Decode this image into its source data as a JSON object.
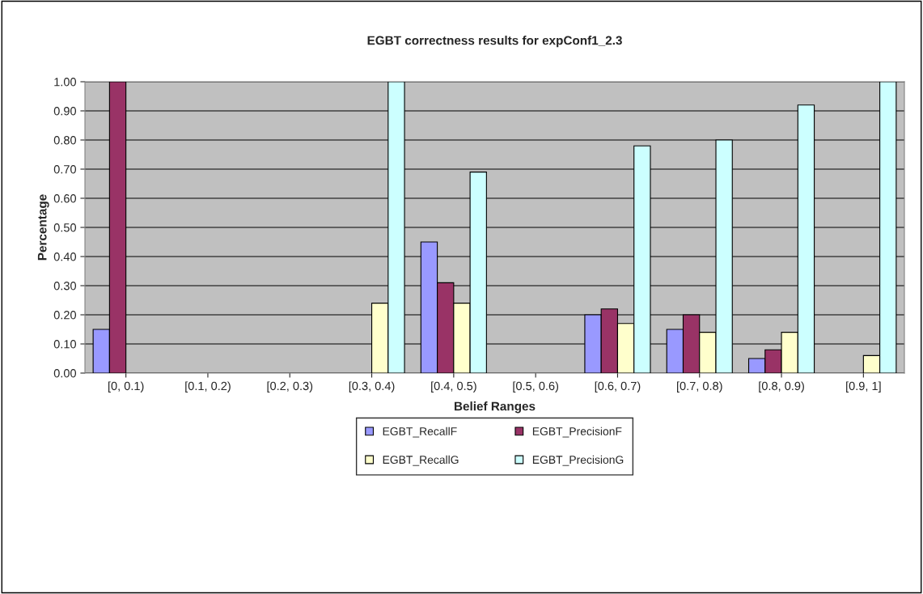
{
  "chart_data": {
    "type": "bar",
    "title": "EGBT correctness results for expConf1_2.3",
    "xlabel": "Belief Ranges",
    "ylabel": "Percentage",
    "categories": [
      "[0, 0.1)",
      "[0.1, 0.2)",
      "[0.2, 0.3)",
      "[0.3, 0.4)",
      "[0.4, 0.5)",
      "[0.5, 0.6)",
      "[0.6, 0.7)",
      "[0.7, 0.8)",
      "[0.8, 0.9)",
      "[0.9, 1]"
    ],
    "series": [
      {
        "name": "EGBT_RecallF",
        "color": "#9999ff",
        "values": [
          0.15,
          null,
          null,
          null,
          0.45,
          null,
          0.2,
          0.15,
          0.05,
          null
        ]
      },
      {
        "name": "EGBT_PrecisionF",
        "color": "#993366",
        "values": [
          1.0,
          null,
          null,
          null,
          0.31,
          null,
          0.22,
          0.2,
          0.08,
          null
        ]
      },
      {
        "name": "EGBT_RecallG",
        "color": "#ffffcc",
        "values": [
          null,
          null,
          null,
          0.24,
          0.24,
          null,
          0.17,
          0.14,
          0.14,
          0.06
        ]
      },
      {
        "name": "EGBT_PrecisionG",
        "color": "#ccffff",
        "values": [
          null,
          null,
          null,
          1.0,
          0.69,
          null,
          0.78,
          0.8,
          0.92,
          1.0
        ]
      }
    ],
    "ylim": [
      0,
      1
    ],
    "yticks": [
      {
        "value": 0,
        "label": "0.00"
      },
      {
        "value": 0.1,
        "label": "0.10"
      },
      {
        "value": 0.2,
        "label": "0.20"
      },
      {
        "value": 0.3,
        "label": "0.30"
      },
      {
        "value": 0.4,
        "label": "0.40"
      },
      {
        "value": 0.5,
        "label": "0.50"
      },
      {
        "value": 0.6,
        "label": "0.60"
      },
      {
        "value": 0.7,
        "label": "0.70"
      },
      {
        "value": 0.8,
        "label": "0.80"
      },
      {
        "value": 0.9,
        "label": "0.90"
      },
      {
        "value": 1,
        "label": "1.00"
      }
    ],
    "grid": "y",
    "legend": "bottom"
  }
}
